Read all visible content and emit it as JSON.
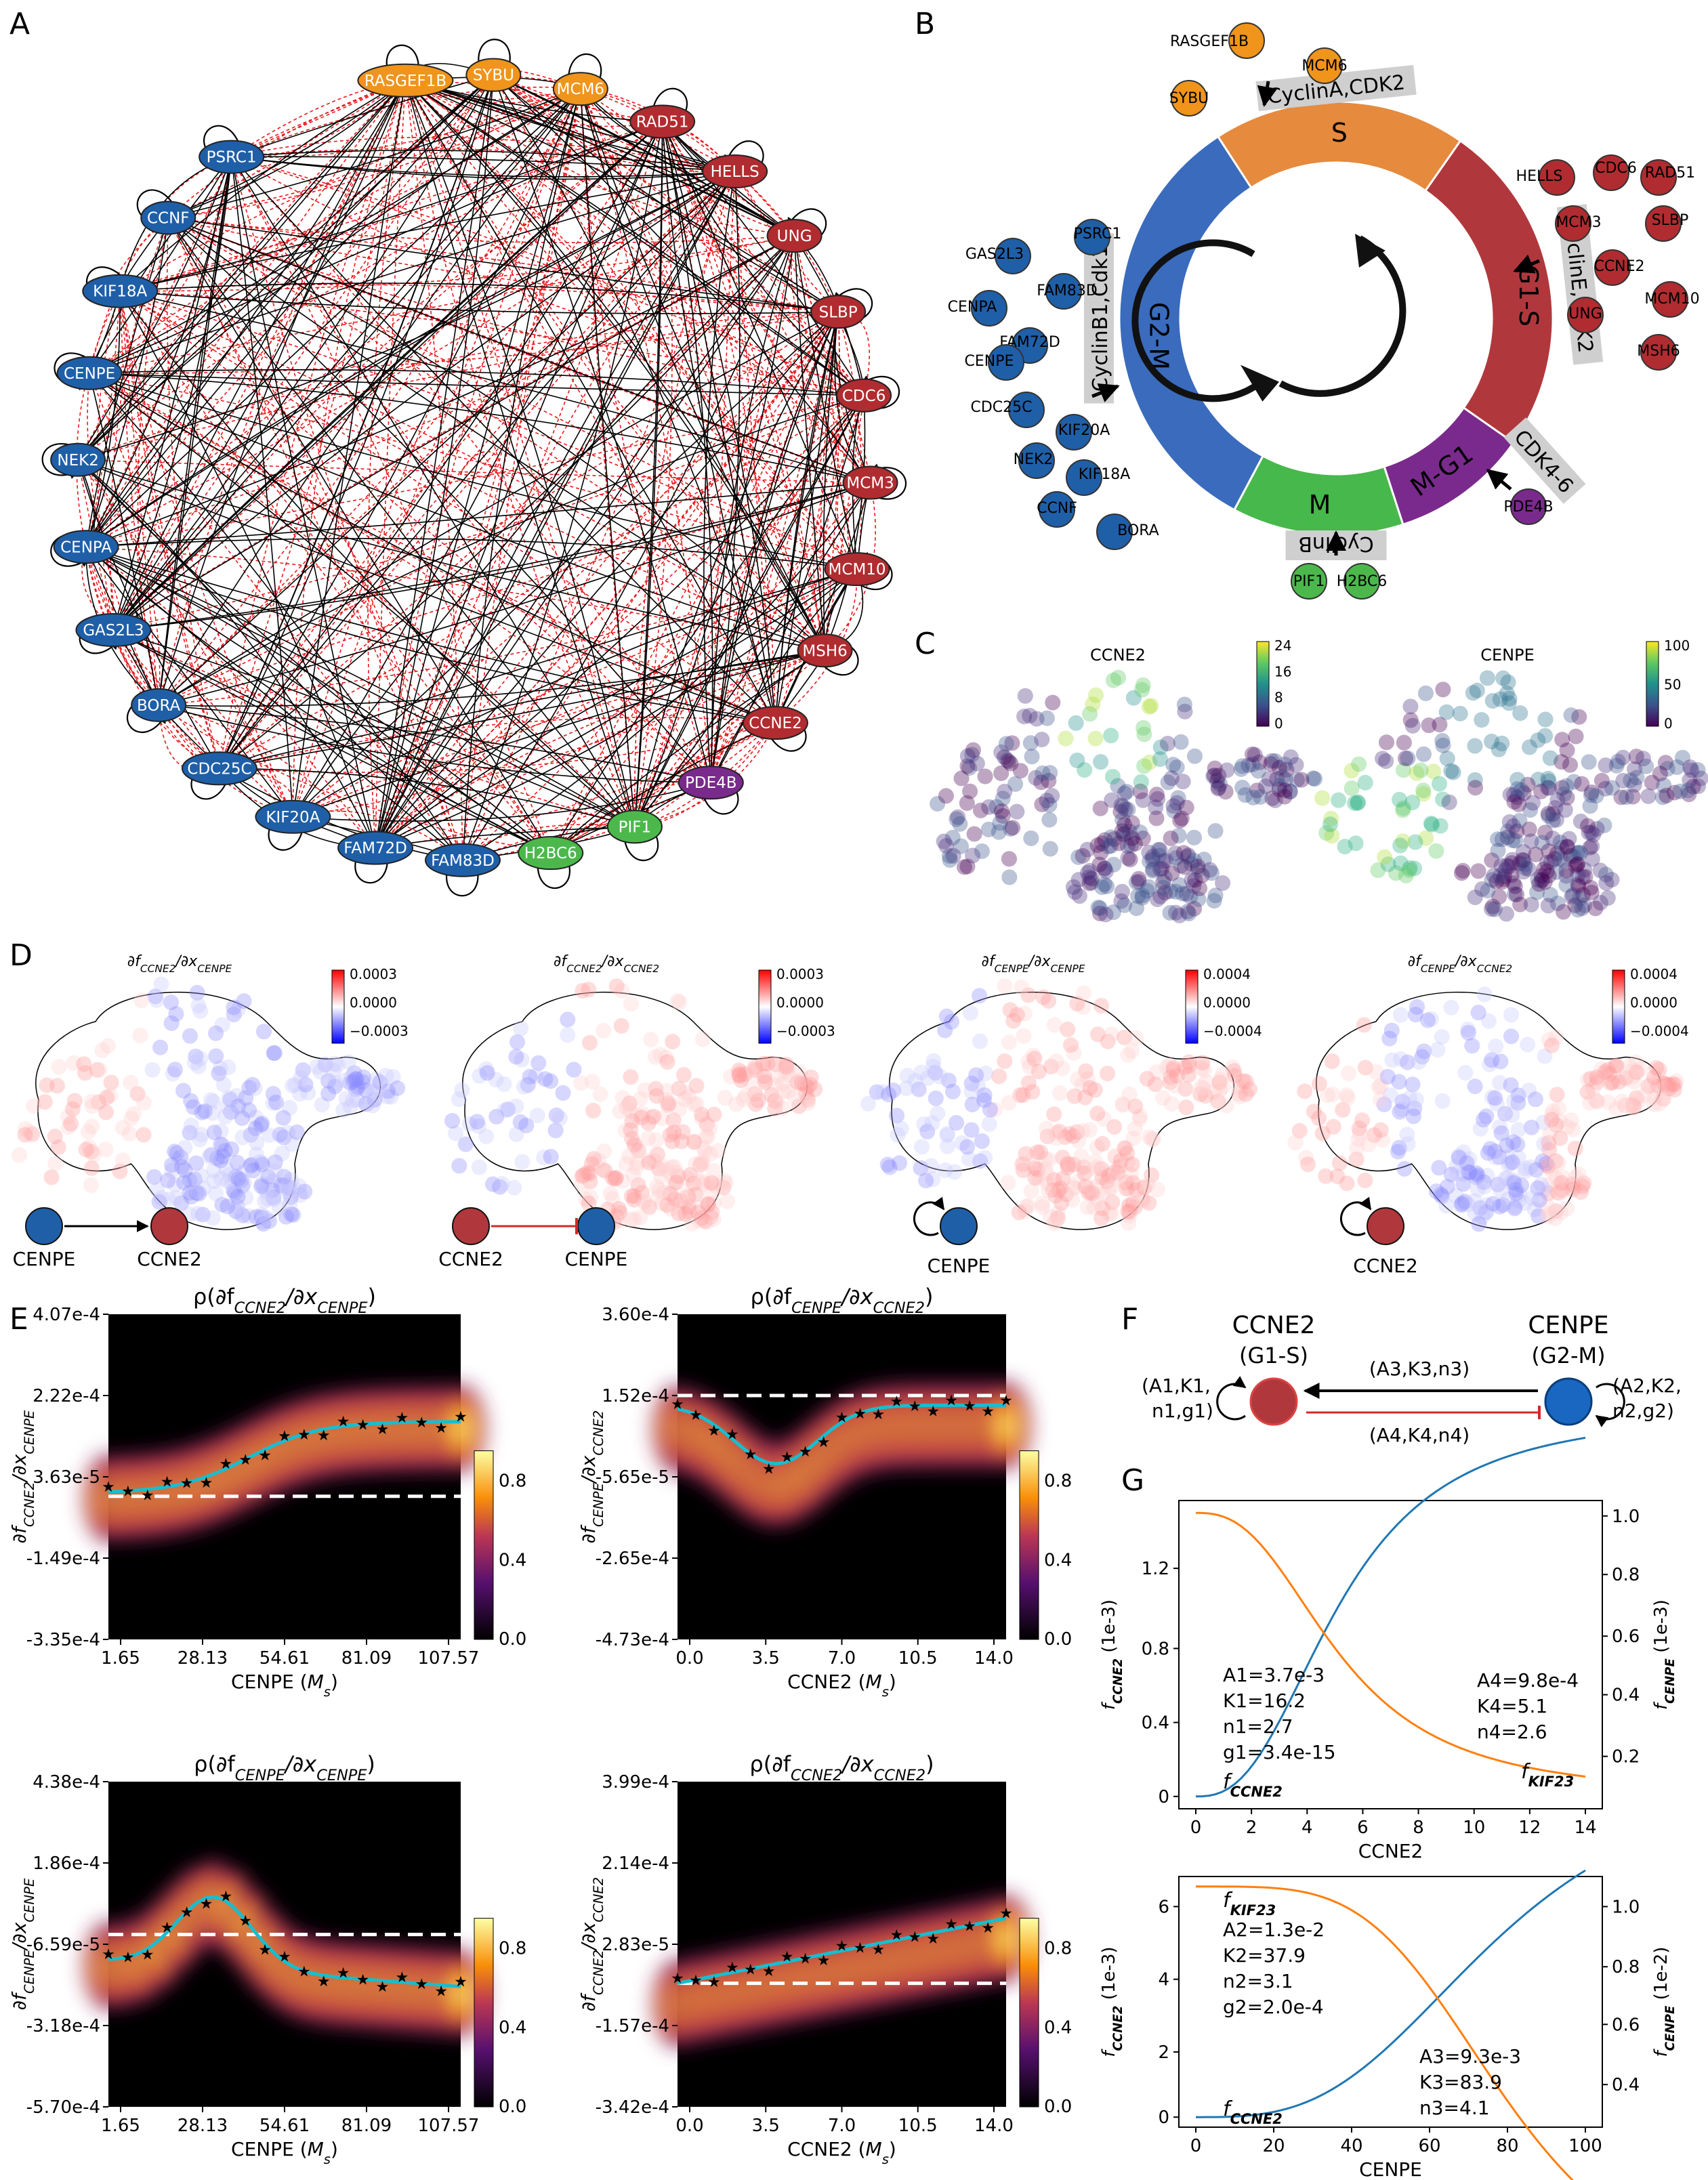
{
  "panels": {
    "A": "A",
    "B": "B",
    "C": "C",
    "D": "D",
    "E": "E",
    "F": "F",
    "G": "G"
  },
  "colors": {
    "blue": "#1f5fa8",
    "orange": "#f0941c",
    "red": "#b02c30",
    "purple": "#7a2a8c",
    "green": "#4cb84c",
    "cyan": "#17becf",
    "g_blue": "#1f77b4",
    "g_orange": "#ff7f0e"
  },
  "panelA": {
    "nodes": [
      {
        "label": "RASGEF1B",
        "group": "orange"
      },
      {
        "label": "SYBU",
        "group": "orange"
      },
      {
        "label": "MCM6",
        "group": "orange"
      },
      {
        "label": "RAD51",
        "group": "red"
      },
      {
        "label": "HELLS",
        "group": "red"
      },
      {
        "label": "UNG",
        "group": "red"
      },
      {
        "label": "SLBP",
        "group": "red"
      },
      {
        "label": "CDC6",
        "group": "red"
      },
      {
        "label": "MCM3",
        "group": "red"
      },
      {
        "label": "MCM10",
        "group": "red"
      },
      {
        "label": "MSH6",
        "group": "red"
      },
      {
        "label": "CCNE2",
        "group": "red"
      },
      {
        "label": "PDE4B",
        "group": "purple"
      },
      {
        "label": "PIF1",
        "group": "green"
      },
      {
        "label": "H2BC6",
        "group": "green"
      },
      {
        "label": "FAM83D",
        "group": "blue"
      },
      {
        "label": "FAM72D",
        "group": "blue"
      },
      {
        "label": "KIF20A",
        "group": "blue"
      },
      {
        "label": "CDC25C",
        "group": "blue"
      },
      {
        "label": "BORA",
        "group": "blue"
      },
      {
        "label": "GAS2L3",
        "group": "blue"
      },
      {
        "label": "CENPA",
        "group": "blue"
      },
      {
        "label": "NEK2",
        "group": "blue"
      },
      {
        "label": "CENPE",
        "group": "blue"
      },
      {
        "label": "KIF18A",
        "group": "blue"
      },
      {
        "label": "CCNF",
        "group": "blue"
      },
      {
        "label": "PSRC1",
        "group": "blue"
      }
    ]
  },
  "panelB": {
    "phases": [
      "S",
      "G1-S",
      "M-G1",
      "M",
      "G2-M"
    ],
    "cyclins": [
      "CyclinA,CDK2",
      "CyclinE,CDK2",
      "CDK4-6",
      "CyclinB",
      "CyclinB1,Cdk1"
    ],
    "s_genes": [
      "RASGEF1B",
      "MCM6",
      "SYBU"
    ],
    "g1s_genes": [
      "HELLS",
      "CDC6",
      "RAD51",
      "MCM3",
      "SLBP",
      "CCNE2",
      "MCM10",
      "UNG",
      "MSH6"
    ],
    "mg1_genes": [
      "PDE4B"
    ],
    "m_genes": [
      "PIF1",
      "H2BC6"
    ],
    "g2m_genes": [
      "PSRC1",
      "GAS2L3",
      "FAM83D",
      "CENPA",
      "FAM72D",
      "CENPE",
      "CDC25C",
      "KIF20A",
      "NEK2",
      "KIF18A",
      "CCNF",
      "BORA"
    ]
  },
  "panelC": {
    "maps": [
      {
        "title": "CCNE2",
        "cbar_ticks": [
          "24",
          "16",
          "8",
          "0"
        ]
      },
      {
        "title": "CENPE",
        "cbar_ticks": [
          "100",
          "50",
          "0"
        ]
      }
    ]
  },
  "panelD": {
    "maps": [
      {
        "title": "∂f",
        "sub1": "CCNE2",
        "mid": "/∂x",
        "sub2": "CENPE",
        "cbar_ticks": [
          "0.0003",
          "0.0000",
          "−0.0003"
        ],
        "left": "CENPE",
        "right": "CCNE2",
        "kind": "activate"
      },
      {
        "title": "∂f",
        "sub1": "CCNE2",
        "mid": "/∂x",
        "sub2": "CCNE2",
        "cbar_ticks": [
          "0.0003",
          "0.0000",
          "−0.0003"
        ],
        "left": "CCNE2",
        "right": "CENPE",
        "kind": "inhibit"
      },
      {
        "title": "∂f",
        "sub1": "CENPE",
        "mid": "/∂x",
        "sub2": "CENPE",
        "cbar_ticks": [
          "0.0004",
          "0.0000",
          "−0.0004"
        ],
        "self": "CENPE",
        "kind": "self-blue"
      },
      {
        "title": "∂f",
        "sub1": "CENPE",
        "mid": "/∂x",
        "sub2": "CCNE2",
        "cbar_ticks": [
          "0.0004",
          "0.0000",
          "−0.0004"
        ],
        "self": "CCNE2",
        "kind": "self-red"
      }
    ]
  },
  "panelE": {
    "cbar_ticks": [
      "0.8",
      "0.4",
      "0.0"
    ],
    "plots": [
      {
        "t_pre": "ρ(∂f",
        "t_s1": "CCNE2",
        "t_mid": "/∂x",
        "t_s2": "CENPE",
        "t_post": ")",
        "yticks": [
          "4.07e-4",
          "2.22e-4",
          "3.63e-5",
          "-1.49e-4",
          "-3.35e-4"
        ],
        "xticks": [
          "1.65",
          "28.13",
          "54.61",
          "81.09",
          "107.57"
        ],
        "xlabel": "CENPE (",
        "xunit": "M",
        "xsub": "s",
        "ylab_s1": "CCNE2",
        "ylab_s2": "CENPE"
      },
      {
        "t_pre": "ρ(∂f",
        "t_s1": "CENPE",
        "t_mid": "/∂x",
        "t_s2": "CCNE2",
        "t_post": ")",
        "yticks": [
          "3.60e-4",
          "1.52e-4",
          "-5.65e-5",
          "-2.65e-4",
          "-4.73e-4"
        ],
        "xticks": [
          "0.0",
          "3.5",
          "7.0",
          "10.5",
          "14.0"
        ],
        "xlabel": "CCNE2 (",
        "xunit": "M",
        "xsub": "s",
        "ylab_s1": "CENPE",
        "ylab_s2": "CCNE2"
      },
      {
        "t_pre": "ρ(∂f",
        "t_s1": "CENPE",
        "t_mid": "/∂x",
        "t_s2": "CENPE",
        "t_post": ")",
        "yticks": [
          "4.38e-4",
          "1.86e-4",
          "-6.59e-5",
          "-3.18e-4",
          "-5.70e-4"
        ],
        "xticks": [
          "1.65",
          "28.13",
          "54.61",
          "81.09",
          "107.57"
        ],
        "xlabel": "CENPE (",
        "xunit": "M",
        "xsub": "s",
        "ylab_s1": "CENPE",
        "ylab_s2": "CENPE"
      },
      {
        "t_pre": "ρ(∂f",
        "t_s1": "CCNE2",
        "t_mid": "/∂x",
        "t_s2": "CCNE2",
        "t_post": ")",
        "yticks": [
          "3.99e-4",
          "2.14e-4",
          "2.83e-5",
          "-1.57e-4",
          "-3.42e-4"
        ],
        "xticks": [
          "0.0",
          "3.5",
          "7.0",
          "10.5",
          "14.0"
        ],
        "xlabel": "CCNE2 (",
        "xunit": "M",
        "xsub": "s",
        "ylab_s1": "CCNE2",
        "ylab_s2": "CCNE2"
      }
    ]
  },
  "panelF": {
    "left_name": "CCNE2",
    "left_phase": "(G1-S)",
    "right_name": "CENPE",
    "right_phase": "(G2-M)",
    "left_params_1": "(A1,K1,",
    "left_params_2": "n1,g1)",
    "right_params_1": "(A2,K2,",
    "right_params_2": "n2,g2)",
    "top_edge": "(A3,K3,n3)",
    "bottom_edge": "(A4,K4,n4)"
  },
  "panelG": {
    "top": {
      "xlabel": "CCNE2",
      "ylab_left": "f",
      "ylab_left_sub": "CCNE2",
      "ylab_left_unit": " (1e-3)",
      "ylab_right": "f",
      "ylab_right_sub": "CENPE",
      "ylab_right_unit": " (1e-3)",
      "xticks": [
        "0",
        "2",
        "4",
        "6",
        "8",
        "10",
        "12",
        "14"
      ],
      "yticks_left": [
        "1.2",
        "0.8",
        "0.4",
        "0"
      ],
      "yticks_right": [
        "1.0",
        "0.8",
        "0.6",
        "0.4",
        "0.2"
      ],
      "params_left": [
        "A1=3.7e-3",
        "K1=16.2",
        "n1=2.7",
        "g1=3.4e-15"
      ],
      "params_right": [
        "A4=9.8e-4",
        "K4=5.1",
        "n4=2.6"
      ],
      "curve_label_1": "f",
      "curve_label_1_sub": "CCNE2",
      "curve_label_2": "f",
      "curve_label_2_sub": "KIF23"
    },
    "bottom": {
      "xlabel": "CENPE",
      "ylab_left": "f",
      "ylab_left_sub": "CCNE2",
      "ylab_left_unit": " (1e-3)",
      "ylab_right": "f",
      "ylab_right_sub": "CENPE",
      "ylab_right_unit": " (1e-2)",
      "xticks": [
        "0",
        "20",
        "40",
        "60",
        "80",
        "100"
      ],
      "yticks_left": [
        "6",
        "4",
        "2",
        "0"
      ],
      "yticks_right": [
        "1.0",
        "0.8",
        "0.6",
        "0.4"
      ],
      "params_left": [
        "A2=1.3e-2",
        "K2=37.9",
        "n2=3.1",
        "g2=2.0e-4"
      ],
      "params_right": [
        "A3=9.3e-3",
        "K3=83.9",
        "n3=4.1"
      ],
      "curve_label_1": "f",
      "curve_label_1_sub": "KIF23",
      "curve_label_2": "f",
      "curve_label_2_sub": "CCNE2"
    }
  }
}
